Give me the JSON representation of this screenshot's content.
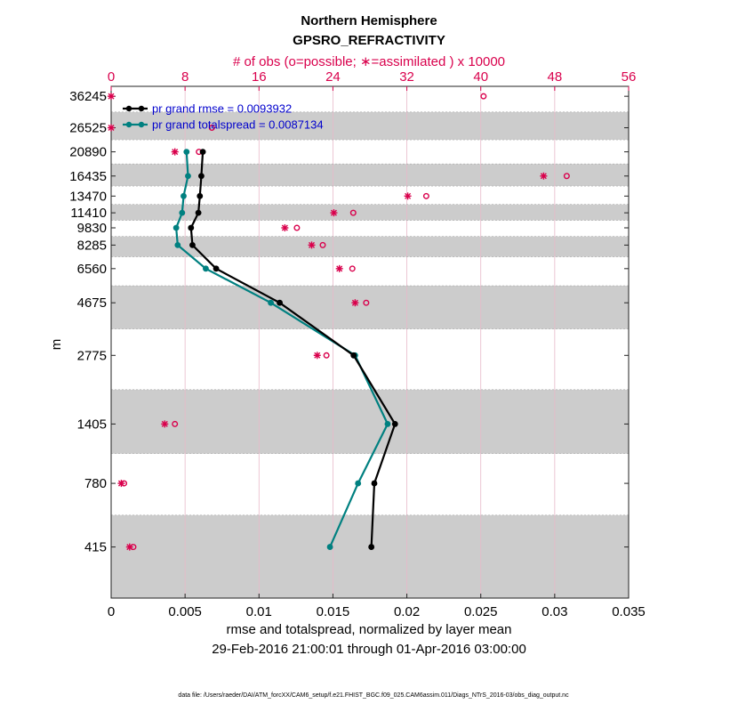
{
  "chart_data": {
    "type": "line",
    "title": "Northern Hemisphere",
    "subtitle": "GPSRO_REFRACTIVITY",
    "top_axis_label": "# of obs (o=possible; ∗=assimilated ) x 10000",
    "top_axis_ticks": [
      "0",
      "8",
      "16",
      "24",
      "32",
      "40",
      "48",
      "56"
    ],
    "top_axis_range": [
      0,
      56
    ],
    "xlabel": "rmse and totalspread, normalized by layer mean",
    "date_range": "29-Feb-2016 21:00:01 through 01-Apr-2016 03:00:00",
    "ylabel": "m",
    "x_ticks": [
      "0",
      "0.005",
      "0.01",
      "0.015",
      "0.02",
      "0.025",
      "0.03",
      "0.035"
    ],
    "xlim": [
      0,
      0.035
    ],
    "y_tick_labels": [
      "36245",
      "26525",
      "20890",
      "16435",
      "13470",
      "11410",
      "9830",
      "8285",
      "6560",
      "4675",
      "2775",
      "1405",
      "780",
      "415"
    ],
    "y_scale": "log",
    "legend_position": "top-left",
    "series": [
      {
        "name": "rmse",
        "legend": "pr grand rmse = 0.0093932",
        "color": "#000000",
        "levels": [
          "20890",
          "16435",
          "13470",
          "11410",
          "9830",
          "8285",
          "6560",
          "4675",
          "2775",
          "1405",
          "780",
          "415"
        ],
        "values": [
          0.0062,
          0.0061,
          0.006,
          0.0059,
          0.0054,
          0.0055,
          0.0071,
          0.0114,
          0.0164,
          0.0192,
          0.0178,
          0.0176
        ]
      },
      {
        "name": "totalspread",
        "legend": "pr grand totalspread = 0.0087134",
        "color": "#008080",
        "levels": [
          "20890",
          "16435",
          "13470",
          "11410",
          "9830",
          "8285",
          "6560",
          "4675",
          "2775",
          "1405",
          "780",
          "415"
        ],
        "values": [
          0.0051,
          0.0052,
          0.0049,
          0.0048,
          0.0044,
          0.0045,
          0.0064,
          0.0108,
          0.0165,
          0.0187,
          0.0167,
          0.0148
        ]
      }
    ],
    "obs": {
      "color": "#d9004c",
      "levels": [
        "36245",
        "26525",
        "20890",
        "16435",
        "13470",
        "11410",
        "9830",
        "8285",
        "6560",
        "4675",
        "2775",
        "1405",
        "780",
        "415"
      ],
      "possible": [
        40.3,
        10.9,
        9.5,
        49.3,
        34.1,
        26.2,
        20.1,
        22.9,
        26.1,
        27.6,
        23.3,
        6.9,
        1.4,
        2.4
      ],
      "assimilated": [
        0.0,
        0.0,
        6.9,
        46.8,
        32.1,
        24.1,
        18.8,
        21.7,
        24.7,
        26.4,
        22.3,
        5.8,
        1.1,
        2.0
      ]
    }
  },
  "footer": "data file: /Users/raeder/DAI/ATM_forcXX/CAM6_setup/f.e21.FHIST_BGC.f09_025.CAM6assim.011/Diags_NTrS_2016-03/obs_diag_output.nc"
}
